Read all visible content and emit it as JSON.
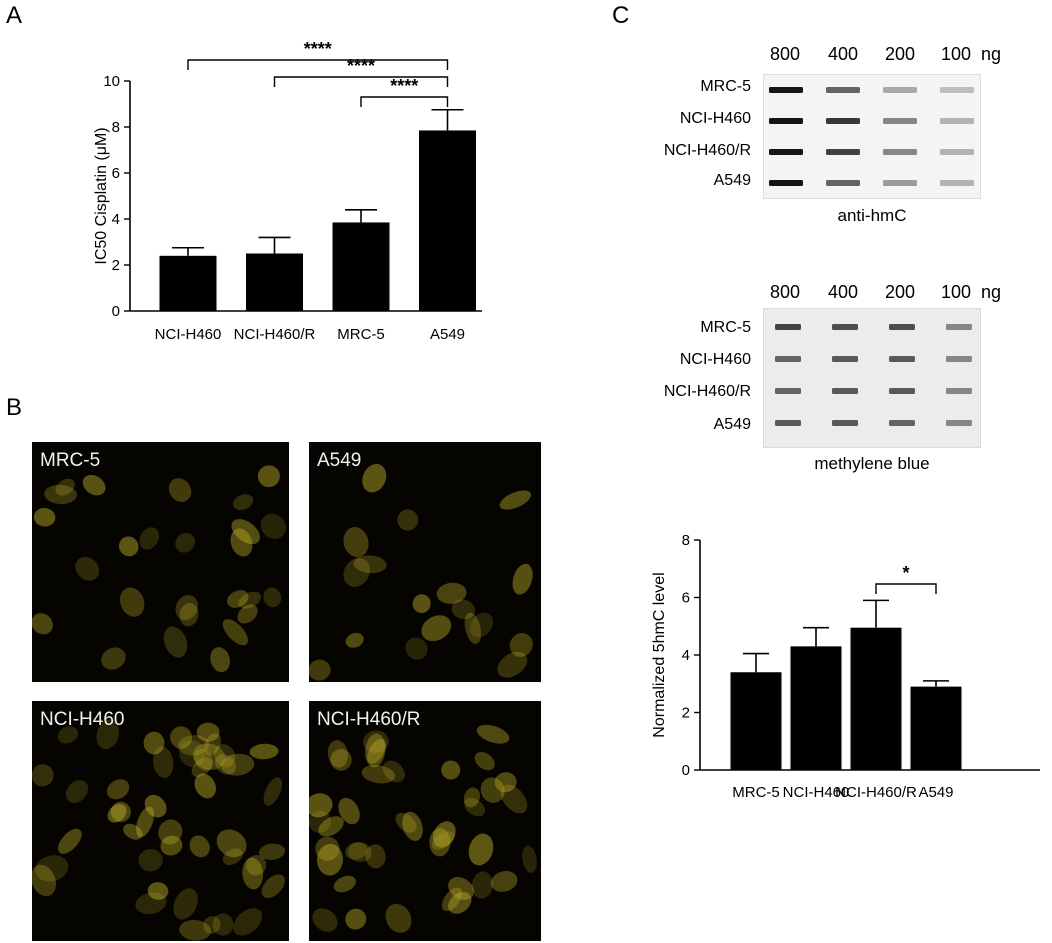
{
  "panels": {
    "a": "A",
    "b": "B",
    "c": "C"
  },
  "chart_data": [
    {
      "type": "bar",
      "panel": "A",
      "categories": [
        "NCI-H460",
        "NCI-H460/R",
        "MRC-5",
        "A549"
      ],
      "values": [
        2.4,
        2.5,
        3.85,
        7.85
      ],
      "errors": [
        0.35,
        0.7,
        0.55,
        0.9
      ],
      "ylabel": "IC50 Cisplatin (μM)",
      "xlabel": "",
      "ylim": [
        0,
        10
      ],
      "yticks": [
        "0",
        "2",
        "4",
        "6",
        "8",
        "10"
      ],
      "bar_color": "#000000",
      "significance": [
        {
          "from": "NCI-H460",
          "to": "A549",
          "label": "****"
        },
        {
          "from": "NCI-H460/R",
          "to": "A549",
          "label": "****"
        },
        {
          "from": "MRC-5",
          "to": "A549",
          "label": "****"
        }
      ]
    },
    {
      "type": "bar",
      "panel": "C",
      "categories": [
        "MRC-5",
        "NCI-H460",
        "NCI-H460/R",
        "A549"
      ],
      "values": [
        3.4,
        4.3,
        4.95,
        2.9
      ],
      "errors": [
        0.65,
        0.65,
        0.95,
        0.2
      ],
      "ylabel": "Normalized 5hmC level",
      "xlabel": "",
      "ylim": [
        0,
        8
      ],
      "yticks": [
        "0",
        "2",
        "4",
        "6",
        "8"
      ],
      "bar_color": "#000000",
      "significance": [
        {
          "from": "NCI-H460/R",
          "to": "A549",
          "label": "*"
        }
      ]
    }
  ],
  "microscopy": [
    {
      "label": "MRC-5"
    },
    {
      "label": "A549"
    },
    {
      "label": "NCI-H460"
    },
    {
      "label": "NCI-H460/R"
    }
  ],
  "blots": [
    {
      "amounts": [
        "800",
        "400",
        "200",
        "100"
      ],
      "unit": "ng",
      "rows": [
        "MRC-5",
        "NCI-H460",
        "NCI-H460/R",
        "A549"
      ],
      "caption": "anti-hmC",
      "intensity": [
        [
          0.95,
          0.6,
          0.3,
          0.2
        ],
        [
          0.95,
          0.8,
          0.45,
          0.25
        ],
        [
          0.95,
          0.75,
          0.45,
          0.25
        ],
        [
          0.95,
          0.6,
          0.35,
          0.25
        ]
      ]
    },
    {
      "amounts": [
        "800",
        "400",
        "200",
        "100"
      ],
      "unit": "ng",
      "rows": [
        "MRC-5",
        "NCI-H460",
        "NCI-H460/R",
        "A549"
      ],
      "caption": "methylene blue",
      "intensity": [
        [
          0.75,
          0.7,
          0.7,
          0.45
        ],
        [
          0.6,
          0.65,
          0.65,
          0.45
        ],
        [
          0.6,
          0.65,
          0.65,
          0.45
        ],
        [
          0.65,
          0.65,
          0.6,
          0.45
        ]
      ]
    }
  ]
}
